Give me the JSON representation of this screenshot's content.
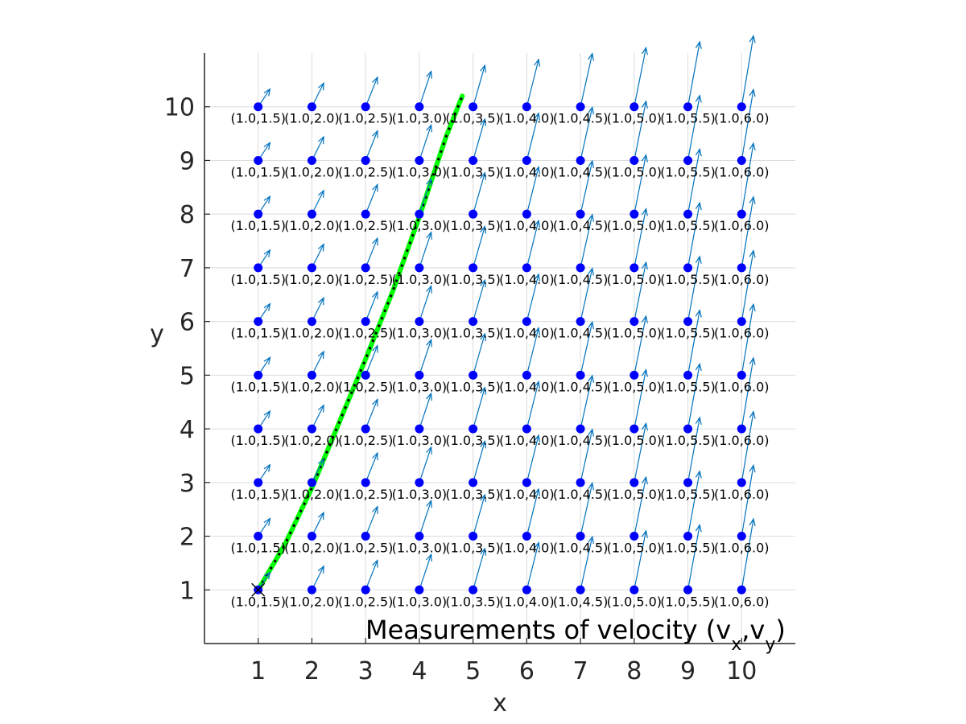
{
  "chart_data": {
    "type": "scatter",
    "title": "",
    "xlabel": "x",
    "ylabel": "y",
    "xlim": [
      0,
      11
    ],
    "ylim": [
      0,
      11
    ],
    "xticks": [
      "1",
      "2",
      "3",
      "4",
      "5",
      "6",
      "7",
      "8",
      "9",
      "10"
    ],
    "yticks": [
      "1",
      "2",
      "3",
      "4",
      "5",
      "6",
      "7",
      "8",
      "9",
      "10"
    ],
    "grid": true,
    "annotation": {
      "prefix": "Measurements of velocity (v",
      "sub1": "x",
      "comma": ",v",
      "sub2": "y",
      "suffix": ")"
    },
    "measurement_points": {
      "x": [
        1,
        2,
        3,
        4,
        5,
        6,
        7,
        8,
        9,
        10
      ],
      "y": [
        1,
        2,
        3,
        4,
        5,
        6,
        7,
        8,
        9,
        10
      ],
      "color": "#0000ff"
    },
    "velocity_labels": [
      "(1.0,1.5)",
      "(1.0,2.0)",
      "(1.0,2.5)",
      "(1.0,3.0)",
      "(1.0,3.5)",
      "(1.0,4.0)",
      "(1.0,4.5)",
      "(1.0,5.0)",
      "(1.0,5.5)",
      "(1.0,6.0)"
    ],
    "velocity_vectors": {
      "vx": [
        1.0,
        1.0,
        1.0,
        1.0,
        1.0,
        1.0,
        1.0,
        1.0,
        1.0,
        1.0
      ],
      "vy": [
        1.5,
        2.0,
        2.5,
        3.0,
        3.5,
        4.0,
        4.5,
        5.0,
        5.5,
        6.0
      ],
      "color": "#0072bd"
    },
    "trajectory": {
      "x": [
        1.0,
        1.5,
        2.0,
        2.5,
        3.0,
        3.5,
        4.0,
        4.5,
        4.8
      ],
      "y": [
        1.0,
        1.85,
        2.9,
        4.1,
        5.3,
        6.55,
        7.95,
        9.45,
        10.2
      ],
      "color": "#00ff00",
      "overlay_color": "#000000"
    },
    "start_marker": {
      "x": 1,
      "y": 1,
      "symbol": "x"
    }
  }
}
